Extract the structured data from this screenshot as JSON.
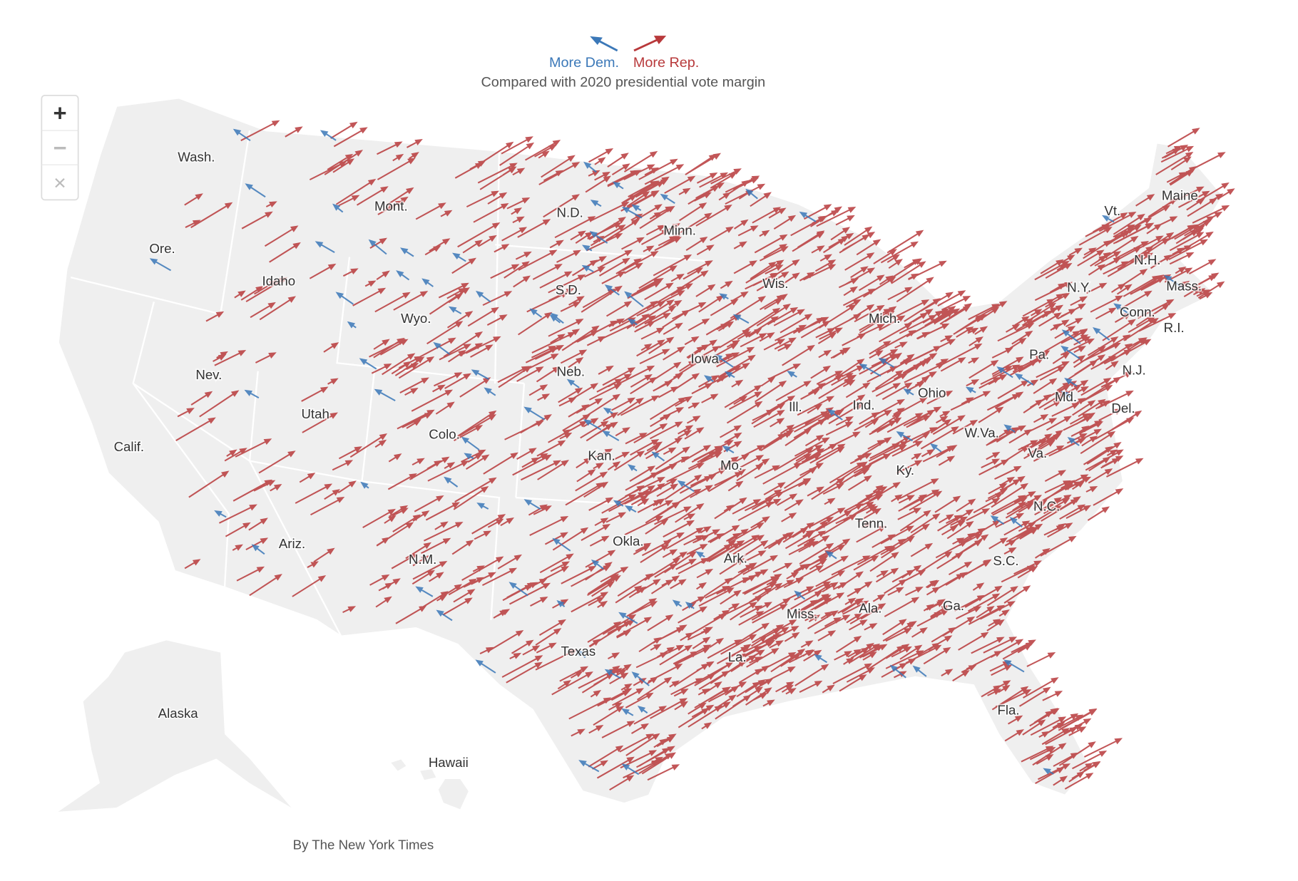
{
  "legend": {
    "dem": "More Dem.",
    "rep": "More Rep.",
    "note": "Compared with 2020 presidential vote margin"
  },
  "controls": {
    "zoom_in": "+",
    "zoom_out": "−",
    "reset": "×"
  },
  "states": [
    "Wash.",
    "Ore.",
    "Calif.",
    "Idaho",
    "Nev.",
    "Mont.",
    "Wyo.",
    "Utah",
    "Ariz.",
    "Colo.",
    "N.M.",
    "N.D.",
    "S.D.",
    "Neb.",
    "Kan.",
    "Okla.",
    "Texas",
    "Minn.",
    "Iowa",
    "Mo.",
    "Ark.",
    "La.",
    "Wis.",
    "Ill.",
    "Miss.",
    "Mich.",
    "Ind.",
    "Ohio",
    "Ky.",
    "Tenn.",
    "Ala.",
    "Ga.",
    "Fla.",
    "S.C.",
    "N.C.",
    "Va.",
    "W.Va.",
    "Pa.",
    "Md.",
    "Del.",
    "N.J.",
    "N.Y.",
    "Conn.",
    "R.I.",
    "Mass.",
    "N.H.",
    "Vt.",
    "Maine",
    "Alaska",
    "Hawaii"
  ],
  "credit": "By The New York Times"
}
